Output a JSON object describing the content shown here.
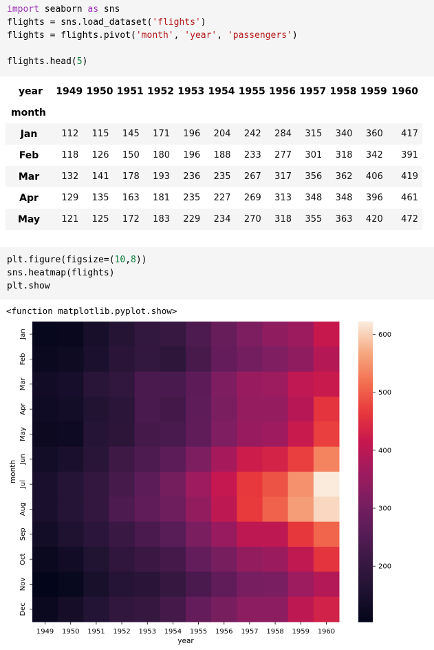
{
  "cell1": {
    "line1_kw": "import",
    "line1_rest_a": " seaborn ",
    "line1_kw2": "as",
    "line1_rest_b": " sns",
    "line2_a": "flights = sns.load_dataset(",
    "line2_str": "'flights'",
    "line2_b": ")",
    "line3_a": "flights = flights.pivot(",
    "line3_s1": "'month'",
    "line3_c1": ", ",
    "line3_s2": "'year'",
    "line3_c2": ", ",
    "line3_s3": "'passengers'",
    "line3_b": ")",
    "line5_a": "flights.head(",
    "line5_num": "5",
    "line5_b": ")"
  },
  "dataframe": {
    "columns_name": "year",
    "index_name": "month",
    "columns": [
      "1949",
      "1950",
      "1951",
      "1952",
      "1953",
      "1954",
      "1955",
      "1956",
      "1957",
      "1958",
      "1959",
      "1960"
    ],
    "rows": [
      {
        "label": "Jan",
        "values": [
          "112",
          "115",
          "145",
          "171",
          "196",
          "204",
          "242",
          "284",
          "315",
          "340",
          "360",
          "417"
        ]
      },
      {
        "label": "Feb",
        "values": [
          "118",
          "126",
          "150",
          "180",
          "196",
          "188",
          "233",
          "277",
          "301",
          "318",
          "342",
          "391"
        ]
      },
      {
        "label": "Mar",
        "values": [
          "132",
          "141",
          "178",
          "193",
          "236",
          "235",
          "267",
          "317",
          "356",
          "362",
          "406",
          "419"
        ]
      },
      {
        "label": "Apr",
        "values": [
          "129",
          "135",
          "163",
          "181",
          "235",
          "227",
          "269",
          "313",
          "348",
          "348",
          "396",
          "461"
        ]
      },
      {
        "label": "May",
        "values": [
          "121",
          "125",
          "172",
          "183",
          "229",
          "234",
          "270",
          "318",
          "355",
          "363",
          "420",
          "472"
        ]
      }
    ]
  },
  "cell2": {
    "line1_a": "plt.figure(figsize=(",
    "line1_n1": "10",
    "line1_c": ",",
    "line1_n2": "8",
    "line1_b": "))",
    "line2": "sns.heatmap(flights)",
    "line3": "plt.show"
  },
  "output_text": "<function matplotlib.pyplot.show>",
  "chart_data": {
    "type": "heatmap",
    "xlabel": "year",
    "ylabel": "month",
    "x": [
      "1949",
      "1950",
      "1951",
      "1952",
      "1953",
      "1954",
      "1955",
      "1956",
      "1957",
      "1958",
      "1959",
      "1960"
    ],
    "y": [
      "Jan",
      "Feb",
      "Mar",
      "Apr",
      "May",
      "Jun",
      "Jul",
      "Aug",
      "Sep",
      "Oct",
      "Nov",
      "Dec"
    ],
    "values": [
      [
        112,
        115,
        145,
        171,
        196,
        204,
        242,
        284,
        315,
        340,
        360,
        417
      ],
      [
        118,
        126,
        150,
        180,
        196,
        188,
        233,
        277,
        301,
        318,
        342,
        391
      ],
      [
        132,
        141,
        178,
        193,
        236,
        235,
        267,
        317,
        356,
        362,
        406,
        419
      ],
      [
        129,
        135,
        163,
        181,
        235,
        227,
        269,
        313,
        348,
        348,
        396,
        461
      ],
      [
        121,
        125,
        172,
        183,
        229,
        234,
        270,
        318,
        355,
        363,
        420,
        472
      ],
      [
        135,
        149,
        178,
        218,
        243,
        264,
        315,
        374,
        422,
        435,
        472,
        535
      ],
      [
        148,
        170,
        199,
        230,
        264,
        302,
        364,
        413,
        465,
        491,
        548,
        622
      ],
      [
        148,
        170,
        199,
        242,
        272,
        293,
        347,
        405,
        467,
        505,
        559,
        606
      ],
      [
        136,
        158,
        184,
        209,
        237,
        259,
        312,
        355,
        404,
        404,
        463,
        508
      ],
      [
        119,
        133,
        162,
        191,
        211,
        229,
        274,
        306,
        347,
        359,
        407,
        461
      ],
      [
        104,
        114,
        146,
        172,
        180,
        203,
        237,
        271,
        305,
        310,
        362,
        390
      ],
      [
        118,
        140,
        166,
        194,
        201,
        229,
        278,
        306,
        336,
        337,
        405,
        432
      ]
    ],
    "colorbar_ticks": [
      "200",
      "300",
      "400",
      "500",
      "600"
    ],
    "colormap": "rocket",
    "vmin": 104,
    "vmax": 622
  }
}
